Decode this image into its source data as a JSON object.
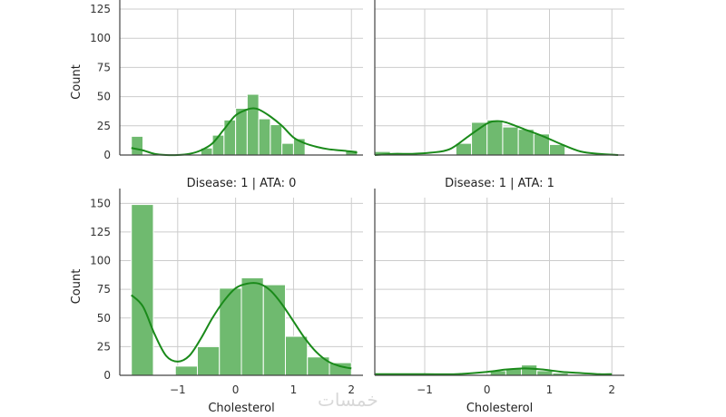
{
  "watermark": "خمسات",
  "colors": {
    "bar_fill": "#6fba6f",
    "bar_stroke": "#ffffff",
    "kde": "#1a8a1a",
    "grid": "#cccccc",
    "axis": "#444444"
  },
  "chart_data": [
    {
      "type": "histogram",
      "panel": "top-left",
      "title": "",
      "xlabel": "",
      "ylabel": "Count",
      "xlim": [
        -2.0,
        2.2
      ],
      "ylim": [
        0,
        125
      ],
      "xticks": [
        -1,
        0,
        1,
        2
      ],
      "xtick_labels": [
        "",
        "",
        "",
        ""
      ],
      "yticks": [
        0,
        25,
        50,
        75,
        100,
        125
      ],
      "ytick_labels": [
        "0",
        "25",
        "50",
        "75",
        "100",
        "125"
      ],
      "bins": [
        {
          "x0": -1.8,
          "x1": -1.6,
          "count": 16
        },
        {
          "x0": -0.6,
          "x1": -0.4,
          "count": 6
        },
        {
          "x0": -0.4,
          "x1": -0.2,
          "count": 17
        },
        {
          "x0": -0.2,
          "x1": 0.0,
          "count": 30
        },
        {
          "x0": 0.0,
          "x1": 0.2,
          "count": 40
        },
        {
          "x0": 0.2,
          "x1": 0.4,
          "count": 52
        },
        {
          "x0": 0.4,
          "x1": 0.6,
          "count": 31
        },
        {
          "x0": 0.6,
          "x1": 0.8,
          "count": 26
        },
        {
          "x0": 0.8,
          "x1": 1.0,
          "count": 10
        },
        {
          "x0": 1.0,
          "x1": 1.2,
          "count": 14
        },
        {
          "x0": 1.9,
          "x1": 2.1,
          "count": 4
        }
      ],
      "kde": {
        "x": [
          -1.8,
          -1.6,
          -1.4,
          -1.2,
          -1.0,
          -0.8,
          -0.6,
          -0.4,
          -0.2,
          0.0,
          0.2,
          0.3,
          0.4,
          0.6,
          0.8,
          1.0,
          1.2,
          1.4,
          1.6,
          1.8,
          2.0,
          2.1
        ],
        "y": [
          6,
          4,
          1,
          0,
          0,
          1,
          4,
          10,
          22,
          34,
          39,
          40,
          39,
          33,
          25,
          15,
          10,
          7,
          5,
          4,
          3,
          2
        ]
      }
    },
    {
      "type": "histogram",
      "panel": "top-right",
      "title": "",
      "xlabel": "",
      "ylabel": "",
      "xlim": [
        -1.8,
        2.2
      ],
      "ylim": [
        0,
        125
      ],
      "xticks": [
        -1,
        0,
        1,
        2
      ],
      "xtick_labels": [
        "",
        "",
        "",
        ""
      ],
      "yticks": [
        0,
        25,
        50,
        75,
        100,
        125
      ],
      "ytick_labels": [
        "",
        "",
        "",
        "",
        "",
        ""
      ],
      "bins": [
        {
          "x0": -1.8,
          "x1": -1.55,
          "count": 3
        },
        {
          "x0": -0.5,
          "x1": -0.25,
          "count": 10
        },
        {
          "x0": -0.25,
          "x1": 0.0,
          "count": 28
        },
        {
          "x0": 0.0,
          "x1": 0.25,
          "count": 30
        },
        {
          "x0": 0.25,
          "x1": 0.5,
          "count": 24
        },
        {
          "x0": 0.5,
          "x1": 0.75,
          "count": 22
        },
        {
          "x0": 0.75,
          "x1": 1.0,
          "count": 18
        },
        {
          "x0": 1.0,
          "x1": 1.25,
          "count": 9
        }
      ],
      "kde": {
        "x": [
          -1.8,
          -1.5,
          -1.2,
          -0.9,
          -0.6,
          -0.3,
          0.0,
          0.15,
          0.3,
          0.6,
          0.9,
          1.2,
          1.5,
          1.8,
          2.1
        ],
        "y": [
          0,
          1,
          1,
          2,
          5,
          16,
          27,
          29,
          28,
          22,
          16,
          9,
          3,
          1,
          0
        ]
      }
    },
    {
      "type": "histogram",
      "panel": "bottom-left",
      "title": "Disease: 1 | ATA: 0",
      "xlabel": "Cholesterol",
      "ylabel": "Count",
      "xlim": [
        -2.0,
        2.2
      ],
      "ylim": [
        0,
        155
      ],
      "xticks": [
        -1,
        0,
        1,
        2
      ],
      "xtick_labels": [
        "−1",
        "0",
        "1",
        "2"
      ],
      "yticks": [
        0,
        25,
        50,
        75,
        100,
        125,
        150
      ],
      "ytick_labels": [
        "0",
        "25",
        "50",
        "75",
        "100",
        "125",
        "150"
      ],
      "bins": [
        {
          "x0": -1.8,
          "x1": -1.42,
          "count": 149
        },
        {
          "x0": -1.04,
          "x1": -0.66,
          "count": 8
        },
        {
          "x0": -0.66,
          "x1": -0.28,
          "count": 25
        },
        {
          "x0": -0.28,
          "x1": 0.1,
          "count": 76
        },
        {
          "x0": 0.1,
          "x1": 0.48,
          "count": 85
        },
        {
          "x0": 0.48,
          "x1": 0.86,
          "count": 79
        },
        {
          "x0": 0.86,
          "x1": 1.24,
          "count": 34
        },
        {
          "x0": 1.24,
          "x1": 1.62,
          "count": 16
        },
        {
          "x0": 1.62,
          "x1": 2.0,
          "count": 11
        }
      ],
      "kde": {
        "x": [
          -1.8,
          -1.6,
          -1.4,
          -1.2,
          -1.0,
          -0.8,
          -0.6,
          -0.4,
          -0.2,
          0.0,
          0.2,
          0.4,
          0.6,
          0.8,
          1.0,
          1.2,
          1.4,
          1.6,
          1.8,
          2.0
        ],
        "y": [
          70,
          60,
          36,
          17,
          12,
          17,
          32,
          50,
          65,
          76,
          80,
          80,
          74,
          62,
          47,
          32,
          20,
          12,
          8,
          6
        ]
      }
    },
    {
      "type": "histogram",
      "panel": "bottom-right",
      "title": "Disease: 1 | ATA: 1",
      "xlabel": "Cholesterol",
      "ylabel": "",
      "xlim": [
        -1.8,
        2.2
      ],
      "ylim": [
        0,
        155
      ],
      "xticks": [
        -1,
        0,
        1,
        2
      ],
      "xtick_labels": [
        "−1",
        "0",
        "1",
        "2"
      ],
      "yticks": [
        0,
        25,
        50,
        75,
        100,
        125,
        150
      ],
      "ytick_labels": [
        "",
        "",
        "",
        "",
        "",
        "",
        ""
      ],
      "bins": [
        {
          "x0": -1.8,
          "x1": -1.55,
          "count": 2
        },
        {
          "x0": 0.05,
          "x1": 0.3,
          "count": 4
        },
        {
          "x0": 0.3,
          "x1": 0.55,
          "count": 6
        },
        {
          "x0": 0.55,
          "x1": 0.8,
          "count": 9
        },
        {
          "x0": 0.8,
          "x1": 1.05,
          "count": 4
        },
        {
          "x0": 1.05,
          "x1": 1.3,
          "count": 2
        }
      ],
      "kde": {
        "x": [
          -1.8,
          -1.5,
          -1.0,
          -0.5,
          0.0,
          0.3,
          0.6,
          0.9,
          1.2,
          1.5,
          1.8,
          2.0
        ],
        "y": [
          1,
          1,
          1,
          1,
          3,
          5,
          6,
          5,
          3,
          2,
          1,
          1
        ]
      }
    }
  ]
}
